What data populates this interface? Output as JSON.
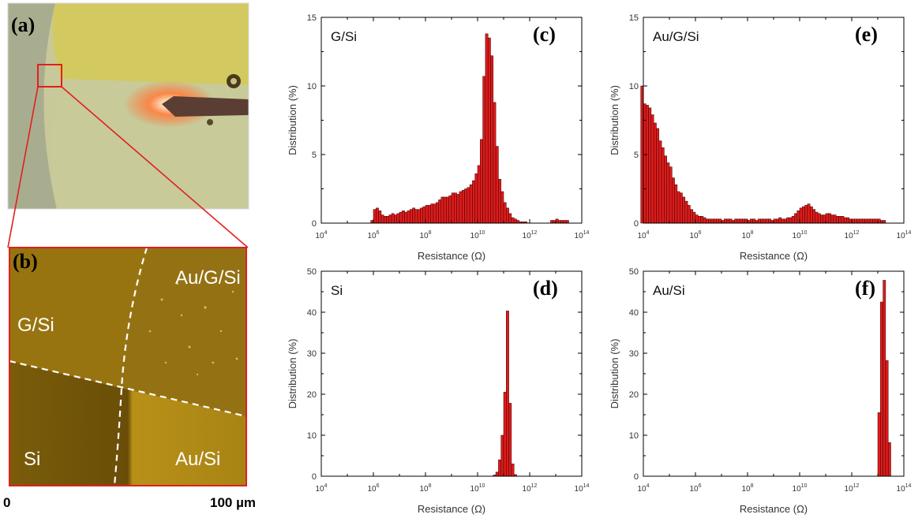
{
  "photo_panels": [
    {
      "letter": "(a)"
    },
    {
      "letter": "(b)",
      "regions": [
        "G/Si",
        "Au/G/Si",
        "Si",
        "Au/Si"
      ]
    }
  ],
  "scale_bar": {
    "start": "0",
    "end": "100 µm"
  },
  "chart_data": [
    {
      "id": "c",
      "letter": "(c)",
      "type": "bar",
      "sample": "G/Si",
      "xlabel": "Resistance  (Ω)",
      "ylabel": "Distribution (%)",
      "x_scale": "log10",
      "xlim_exp": [
        4,
        14
      ],
      "ylim": [
        0,
        15
      ],
      "yticks": [
        0,
        5,
        10,
        15
      ],
      "bin_width_exp": 0.1,
      "bin_start_exp": [
        5.9,
        6.0,
        6.1,
        6.2,
        6.3,
        6.4,
        6.5,
        6.6,
        6.7,
        6.8,
        6.9,
        7.0,
        7.1,
        7.2,
        7.3,
        7.4,
        7.5,
        7.6,
        7.7,
        7.8,
        7.9,
        8.0,
        8.1,
        8.2,
        8.3,
        8.4,
        8.5,
        8.6,
        8.7,
        8.8,
        8.9,
        9.0,
        9.1,
        9.2,
        9.3,
        9.4,
        9.5,
        9.6,
        9.7,
        9.8,
        9.9,
        10.0,
        10.1,
        10.2,
        10.3,
        10.4,
        10.5,
        10.6,
        10.7,
        10.8,
        10.9,
        11.0,
        11.1,
        11.2,
        11.3,
        11.4,
        11.5,
        11.6,
        11.7,
        11.8,
        11.9,
        12.0,
        12.1,
        12.2,
        12.3,
        12.4,
        12.5,
        12.6,
        12.7,
        12.8,
        12.9,
        13.0,
        13.1,
        13.2,
        13.3,
        13.4,
        13.5,
        13.6,
        13.7
      ],
      "values": [
        0.2,
        1.0,
        1.1,
        0.9,
        0.6,
        0.5,
        0.5,
        0.6,
        0.7,
        0.6,
        0.7,
        0.8,
        0.9,
        0.8,
        0.9,
        1.0,
        1.1,
        1.0,
        1.0,
        1.1,
        1.2,
        1.3,
        1.3,
        1.4,
        1.4,
        1.5,
        1.7,
        1.9,
        1.9,
        1.9,
        2.0,
        2.2,
        2.2,
        2.1,
        2.3,
        2.4,
        2.5,
        2.6,
        2.8,
        3.1,
        3.6,
        4.2,
        6.1,
        10.7,
        13.8,
        13.5,
        12.2,
        8.8,
        5.6,
        3.2,
        2.3,
        1.5,
        1.1,
        0.7,
        0.4,
        0.3,
        0.2,
        0.1,
        0.1,
        0.1,
        0,
        0,
        0,
        0,
        0,
        0,
        0,
        0,
        0,
        0.2,
        0.2,
        0.3,
        0.2,
        0.2,
        0.2,
        0.2,
        0,
        0,
        0
      ]
    },
    {
      "id": "e",
      "letter": "(e)",
      "type": "bar",
      "sample": "Au/G/Si",
      "xlabel": "Resistance  (Ω)",
      "ylabel": "Distribution (%)",
      "x_scale": "log10",
      "xlim_exp": [
        4,
        14
      ],
      "ylim": [
        0,
        15
      ],
      "yticks": [
        0,
        5,
        10,
        15
      ],
      "bin_width_exp": 0.1,
      "bin_start_exp": [
        3.9,
        4.0,
        4.1,
        4.2,
        4.3,
        4.4,
        4.5,
        4.6,
        4.7,
        4.8,
        4.9,
        5.0,
        5.1,
        5.2,
        5.3,
        5.4,
        5.5,
        5.6,
        5.7,
        5.8,
        5.9,
        6.0,
        6.1,
        6.2,
        6.3,
        6.4,
        6.5,
        6.6,
        6.7,
        6.8,
        6.9,
        7.0,
        7.1,
        7.2,
        7.3,
        7.4,
        7.5,
        7.6,
        7.7,
        7.8,
        7.9,
        8.0,
        8.1,
        8.2,
        8.3,
        8.4,
        8.5,
        8.6,
        8.7,
        8.8,
        8.9,
        9.0,
        9.1,
        9.2,
        9.3,
        9.4,
        9.5,
        9.6,
        9.7,
        9.8,
        9.9,
        10.0,
        10.1,
        10.2,
        10.3,
        10.4,
        10.5,
        10.6,
        10.7,
        10.8,
        10.9,
        11.0,
        11.1,
        11.2,
        11.3,
        11.4,
        11.5,
        11.6,
        11.7,
        11.8,
        11.9,
        12.0,
        12.1,
        12.2,
        12.3,
        12.4,
        12.5,
        12.6,
        12.7,
        12.8,
        12.9,
        13.0,
        13.1,
        13.2
      ],
      "values": [
        10.0,
        8.7,
        8.6,
        8.4,
        7.9,
        7.3,
        6.9,
        6.0,
        5.5,
        4.9,
        4.4,
        4.1,
        3.3,
        2.8,
        2.3,
        2.2,
        1.9,
        1.6,
        1.3,
        1.0,
        0.8,
        0.6,
        0.5,
        0.5,
        0.4,
        0.3,
        0.3,
        0.3,
        0.3,
        0.3,
        0.3,
        0.2,
        0.3,
        0.3,
        0.3,
        0.2,
        0.3,
        0.3,
        0.3,
        0.3,
        0.3,
        0.2,
        0.3,
        0.3,
        0.2,
        0.3,
        0.3,
        0.3,
        0.3,
        0.3,
        0.2,
        0.3,
        0.3,
        0.4,
        0.3,
        0.3,
        0.4,
        0.4,
        0.5,
        0.7,
        0.9,
        1.1,
        1.2,
        1.3,
        1.4,
        1.2,
        1.0,
        0.8,
        0.7,
        0.6,
        0.6,
        0.7,
        0.7,
        0.6,
        0.6,
        0.5,
        0.5,
        0.5,
        0.4,
        0.4,
        0.3,
        0.3,
        0.3,
        0.3,
        0.3,
        0.3,
        0.3,
        0.3,
        0.3,
        0.3,
        0.3,
        0.3,
        0.2,
        0.2
      ]
    },
    {
      "id": "d",
      "letter": "(d)",
      "type": "bar",
      "sample": "Si",
      "xlabel": "Resistance  (Ω)",
      "ylabel": "Distribution (%)",
      "x_scale": "log10",
      "xlim_exp": [
        4,
        14
      ],
      "ylim": [
        0,
        50
      ],
      "yticks": [
        0,
        10,
        20,
        30,
        40,
        50
      ],
      "bin_width_exp": 0.1,
      "bin_start_exp": [
        10.6,
        10.7,
        10.8,
        10.9,
        11.0,
        11.1,
        11.2,
        11.3,
        11.4
      ],
      "values": [
        0.3,
        1.0,
        4.0,
        10.0,
        20.5,
        40.3,
        17.8,
        3.0,
        0.4
      ]
    },
    {
      "id": "f",
      "letter": "(f)",
      "type": "bar",
      "sample": "Au/Si",
      "xlabel": "Resistance  (Ω)",
      "ylabel": "Distribution (%)",
      "x_scale": "log10",
      "xlim_exp": [
        4,
        14
      ],
      "ylim": [
        0,
        50
      ],
      "yticks": [
        0,
        10,
        20,
        30,
        40,
        50
      ],
      "bin_width_exp": 0.1,
      "bin_start_exp": [
        13.0,
        13.1,
        13.2,
        13.3,
        13.4
      ],
      "values": [
        15.5,
        42.5,
        47.8,
        28.2,
        8.2
      ]
    }
  ],
  "colors": {
    "bar_fill": "#dd1c1c",
    "bar_stroke": "#3a0000",
    "accent_red": "#e0201c"
  }
}
